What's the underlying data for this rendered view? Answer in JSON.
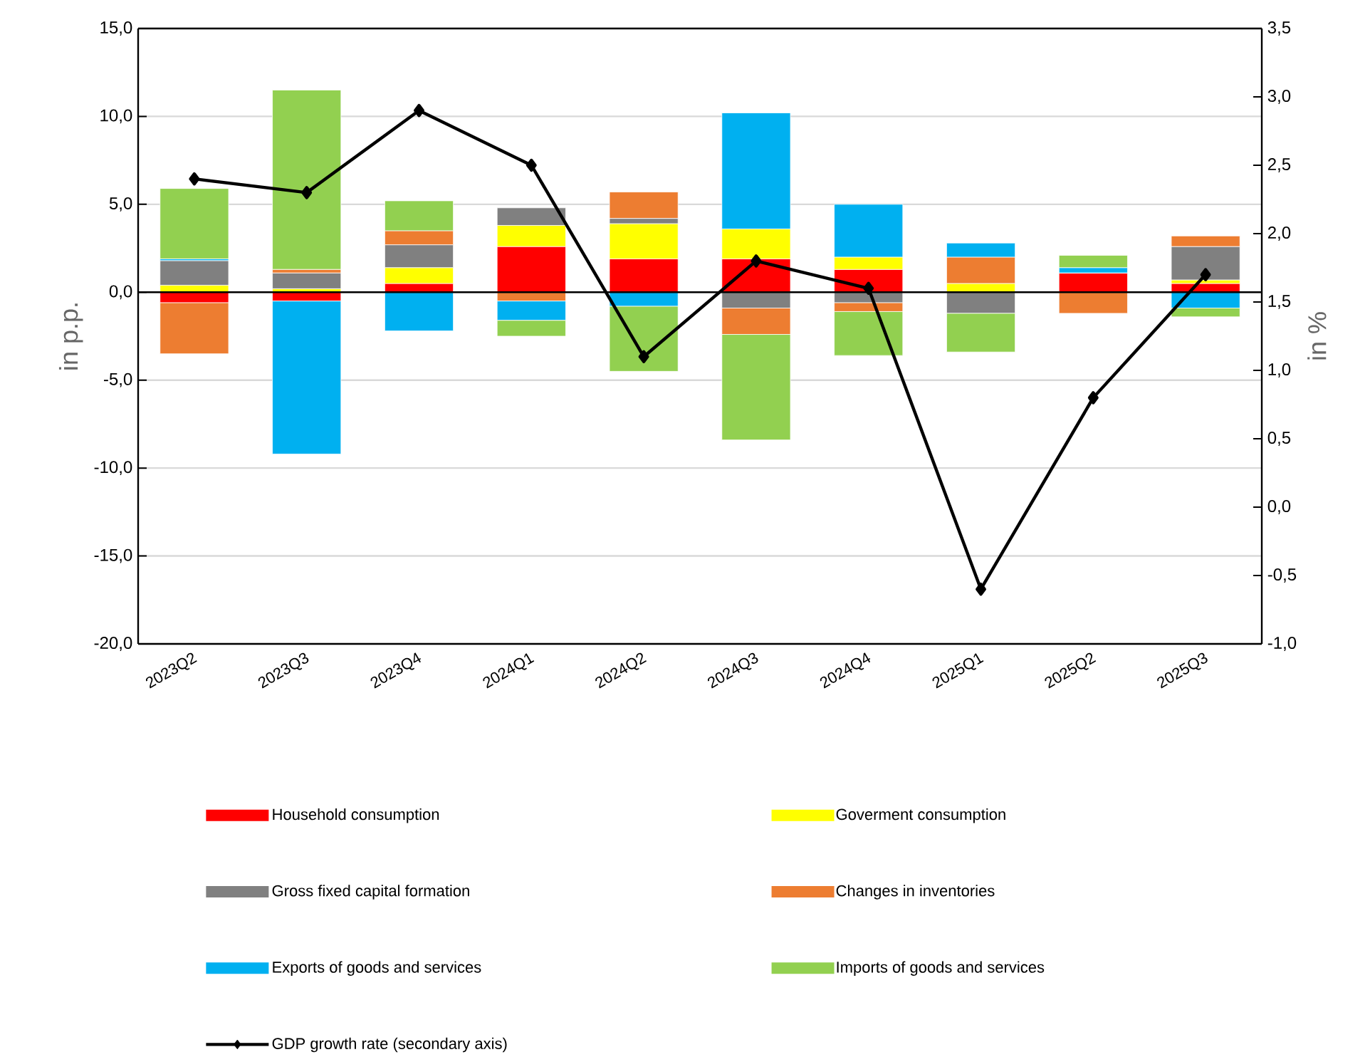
{
  "chart_data": {
    "type": "bar",
    "stacked": true,
    "categories": [
      "2023Q2",
      "2023Q3",
      "2023Q4",
      "2024Q1",
      "2024Q2",
      "2024Q3",
      "2024Q4",
      "2025Q1",
      "2025Q2",
      "2025Q3"
    ],
    "series": [
      {
        "name": "Household consumption",
        "color": "#ff0000",
        "values": [
          -0.6,
          -0.5,
          0.5,
          2.6,
          1.9,
          1.9,
          1.3,
          0,
          1.1,
          0.5
        ]
      },
      {
        "name": "Goverment consumption",
        "color": "#ffff00",
        "values": [
          0.4,
          0.2,
          0.9,
          1.2,
          2.0,
          1.7,
          0.7,
          0.5,
          0,
          0.2
        ]
      },
      {
        "name": "Gross fixed capital formation",
        "color": "#808080",
        "values": [
          1.4,
          0.9,
          1.3,
          1.0,
          0.3,
          -0.9,
          -0.6,
          -1.2,
          0,
          1.9
        ]
      },
      {
        "name": "Changes in inventories",
        "color": "#ed7d31",
        "values": [
          -2.9,
          0.2,
          0.8,
          -0.5,
          1.5,
          -1.5,
          -0.5,
          1.5,
          -1.2,
          0.6
        ]
      },
      {
        "name": "Exports of goods and services",
        "color": "#00b0f0",
        "values": [
          0.1,
          -8.7,
          -2.2,
          -1.1,
          -0.8,
          6.6,
          3.0,
          0.8,
          0.3,
          -0.9
        ]
      },
      {
        "name": "Imports of goods and services",
        "color": "#92d050",
        "values": [
          4.0,
          10.2,
          1.7,
          -0.9,
          -3.7,
          -6.0,
          -2.5,
          -2.2,
          0.7,
          -0.5
        ]
      },
      {
        "name": "GDP growth rate (secondary axis)",
        "color": "#000000",
        "type": "line",
        "axis": "y2",
        "marker": "diamond",
        "values": [
          2.4,
          2.3,
          2.9,
          2.5,
          1.1,
          1.8,
          1.6,
          -0.6,
          0.8,
          1.7
        ]
      }
    ],
    "ylabel": "in p.p.",
    "y2label": "in %",
    "ylim": [
      -20,
      15
    ],
    "yticks": [
      {
        "value": -20,
        "label": "-20,0"
      },
      {
        "value": -15,
        "label": "-15,0"
      },
      {
        "value": -10,
        "label": "-10,0"
      },
      {
        "value": -5,
        "label": "-5,0"
      },
      {
        "value": 0,
        "label": "0,0"
      },
      {
        "value": 5,
        "label": "5,0"
      },
      {
        "value": 10,
        "label": "10,0"
      },
      {
        "value": 15,
        "label": "15,0"
      }
    ],
    "y2lim": [
      -1,
      3.5
    ],
    "y2ticks": [
      {
        "value": -1,
        "label": "-1,0"
      },
      {
        "value": -0.5,
        "label": "-0,5"
      },
      {
        "value": 0,
        "label": "0,0"
      },
      {
        "value": 0.5,
        "label": "0,5"
      },
      {
        "value": 1,
        "label": "1,0"
      },
      {
        "value": 1.5,
        "label": "1,5"
      },
      {
        "value": 2,
        "label": "2,0"
      },
      {
        "value": 2.5,
        "label": "2,5"
      },
      {
        "value": 3,
        "label": "3,0"
      },
      {
        "value": 3.5,
        "label": "3,5"
      }
    ],
    "grid": "y",
    "legend": "bottom"
  }
}
